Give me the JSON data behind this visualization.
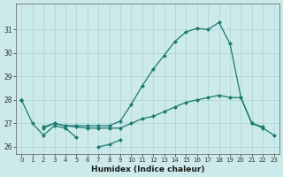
{
  "title": "",
  "xlabel": "Humidex (Indice chaleur)",
  "x_values": [
    0,
    1,
    2,
    3,
    4,
    5,
    6,
    7,
    8,
    9,
    10,
    11,
    12,
    13,
    14,
    15,
    16,
    17,
    18,
    19,
    20,
    21,
    22,
    23
  ],
  "line1": [
    28.0,
    27.0,
    26.5,
    26.9,
    26.8,
    26.4,
    null,
    26.0,
    26.1,
    26.3,
    null,
    null,
    null,
    null,
    null,
    null,
    null,
    null,
    null,
    null,
    null,
    null,
    null,
    null
  ],
  "line2": [
    28.0,
    null,
    26.8,
    27.0,
    26.9,
    26.85,
    26.8,
    26.8,
    26.8,
    26.8,
    27.0,
    27.2,
    27.3,
    27.5,
    27.7,
    27.9,
    28.0,
    28.1,
    28.2,
    28.1,
    28.1,
    27.0,
    26.8,
    26.5
  ],
  "line3": [
    28.0,
    null,
    26.85,
    27.0,
    26.9,
    26.9,
    26.9,
    26.9,
    26.9,
    27.1,
    27.8,
    28.6,
    29.3,
    29.9,
    30.5,
    30.9,
    31.05,
    31.0,
    31.3,
    30.4,
    28.1,
    27.0,
    26.85,
    null
  ],
  "bg_color": "#cceaea",
  "line_color": "#1a7a6e",
  "grid_color": "#aad4d4",
  "ylim": [
    25.7,
    32.1
  ],
  "xlim": [
    -0.5,
    23.5
  ],
  "yticks": [
    26,
    27,
    28,
    29,
    30,
    31
  ],
  "xticks": [
    0,
    1,
    2,
    3,
    4,
    5,
    6,
    7,
    8,
    9,
    10,
    11,
    12,
    13,
    14,
    15,
    16,
    17,
    18,
    19,
    20,
    21,
    22,
    23
  ]
}
